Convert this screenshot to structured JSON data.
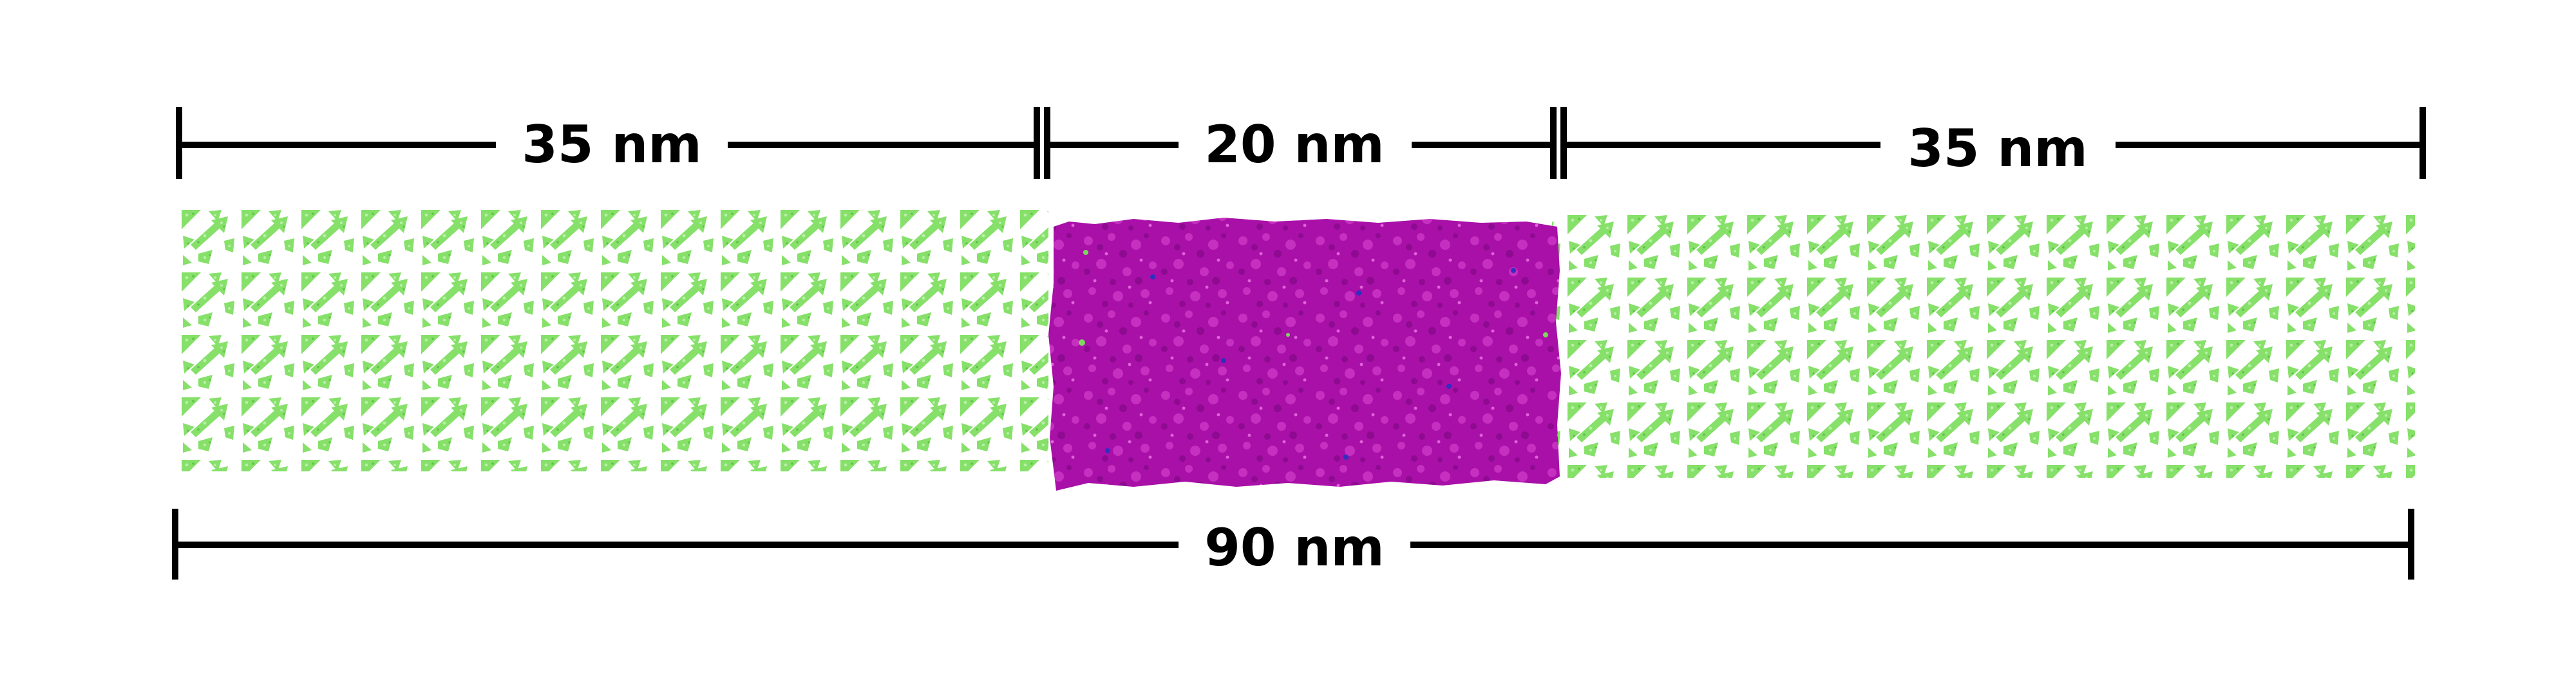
{
  "dimensions": {
    "left_segment_label": "35 nm",
    "middle_segment_label": "20 nm",
    "right_segment_label": "35 nm",
    "total_label": "90 nm"
  },
  "colors": {
    "crystal_lattice": "#86e06a",
    "amorphous_region": "#a810a8",
    "amorphous_highlight": "#d040c8",
    "amorphous_speck": "#3030c0",
    "dimension_line": "#000000",
    "background": "#ffffff"
  }
}
